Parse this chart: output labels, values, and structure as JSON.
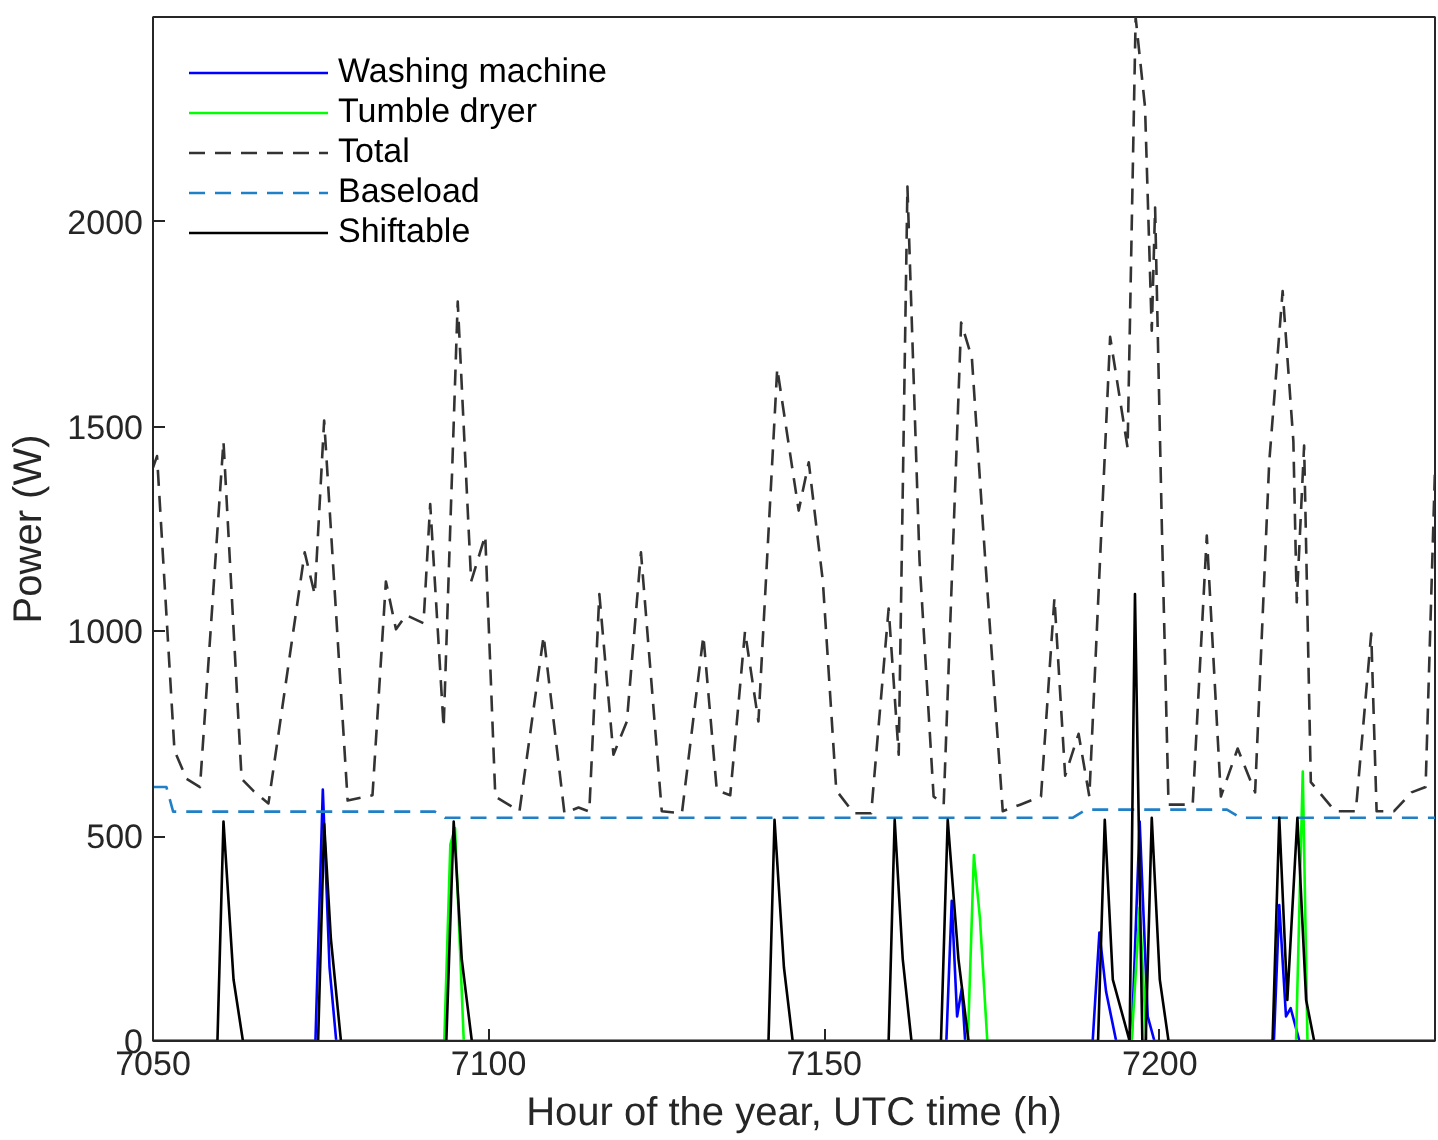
{
  "chart_data": {
    "type": "line",
    "xlabel": "Hour of the year, UTC time (h)",
    "ylabel": "Power (W)",
    "xlim": [
      7050,
      7241
    ],
    "ylim": [
      0,
      2500
    ],
    "xticks": [
      7050,
      7100,
      7150,
      7200
    ],
    "yticks": [
      0,
      500,
      1000,
      1500,
      2000
    ],
    "legend": "top left",
    "marker": "none",
    "series": [
      {
        "name": "Washing machine",
        "color": "#0000ff",
        "line_style": "solid",
        "x": [
          7050,
          7074.2,
          7075.3,
          7076.3,
          7077.3,
          7168.2,
          7169,
          7169.8,
          7170.5,
          7171,
          7190,
          7191,
          7192,
          7193.5,
          7195.8,
          7197,
          7198.2,
          7199.2,
          7217,
          7217.8,
          7218.8,
          7219.5,
          7220.8,
          7241
        ],
        "values": [
          0,
          0,
          614,
          180,
          0,
          0,
          342,
          60,
          128,
          0,
          0,
          265,
          120,
          0,
          0,
          536,
          60,
          0,
          0,
          332,
          60,
          80,
          0,
          0
        ]
      },
      {
        "name": "Tumble dryer",
        "color": "#00ff00",
        "line_style": "solid",
        "x": [
          7050,
          7093.4,
          7094.3,
          7095,
          7096.3,
          7171.4,
          7172.3,
          7173.2,
          7174.3,
          7195.8,
          7197,
          7198,
          7220.3,
          7221.3,
          7222,
          7241
        ],
        "values": [
          0,
          0,
          480,
          520,
          0,
          0,
          454,
          300,
          0,
          0,
          326,
          0,
          0,
          658,
          0,
          0
        ]
      },
      {
        "name": "Total",
        "color": "#333333",
        "line_style": "dashed",
        "x": [
          7050,
          7050.6,
          7053.2,
          7055,
          7057,
          7060.5,
          7063.2,
          7065,
          7067.2,
          7072.6,
          7074.1,
          7075.5,
          7079,
          7082.7,
          7084.7,
          7086.2,
          7087.7,
          7090.3,
          7091.3,
          7093.3,
          7095.4,
          7097.4,
          7099.5,
          7101,
          7104.6,
          7108.2,
          7111.3,
          7113.4,
          7115,
          7116.5,
          7118.6,
          7120.6,
          7122.7,
          7125.8,
          7128.8,
          7132,
          7134,
          7136,
          7138.2,
          7140.2,
          7143,
          7146.2,
          7147.7,
          7149.8,
          7151.8,
          7154.4,
          7157,
          7159.6,
          7161.1,
          7162.4,
          7164.2,
          7166.3,
          7167.8,
          7170.4,
          7172,
          7174,
          7176.6,
          7179.2,
          7182.3,
          7184.3,
          7185.9,
          7187.9,
          7189.5,
          7192.6,
          7195.2,
          7196.4,
          7197.8,
          7198.8,
          7199.3,
          7200.3,
          7201.3,
          7204.9,
          7207,
          7209.1,
          7211.6,
          7214.2,
          7216.3,
          7218.3,
          7219.9,
          7220.4,
          7221.5,
          7222.5,
          7226.1,
          7229.2,
          7231.5,
          7232.3,
          7234.9,
          7237.5,
          7239.6,
          7241
        ],
        "values": [
          1400,
          1428,
          709,
          640,
          620,
          1464,
          640,
          610,
          580,
          1193,
          1090,
          1515,
          587,
          600,
          1122,
          1005,
          1040,
          1020,
          1311,
          765,
          1805,
          1122,
          1234,
          597,
          561,
          989,
          556,
          570,
          560,
          1091,
          699,
          780,
          1193,
          561,
          556,
          989,
          612,
          600,
          1000,
          780,
          1642,
          1295,
          1413,
          1122,
          612,
          556,
          556,
          1056,
          699,
          2086,
          1173,
          597,
          577,
          1754,
          1668,
          1173,
          561,
          577,
          597,
          1081,
          648,
          750,
          597,
          1719,
          1448,
          2499,
          2280,
          1734,
          2035,
          1260,
          577,
          577,
          1234,
          597,
          714,
          607,
          1413,
          1831,
          1464,
          1071,
          1454,
          632,
          561,
          561,
          995,
          561,
          561,
          607,
          620,
          1397
        ]
      },
      {
        "name": "Baseload",
        "color": "#1f80c8",
        "line_style": "dashed",
        "x": [
          7050,
          7052,
          7053,
          7092,
          7093.5,
          7187,
          7189,
          7210,
          7212,
          7241
        ],
        "values": [
          620,
          620,
          560,
          560,
          545,
          545,
          565,
          565,
          545,
          545
        ]
      },
      {
        "name": "Shiftable",
        "color": "#000000",
        "line_style": "solid",
        "x": [
          7050,
          7059.6,
          7060.5,
          7062,
          7063.4,
          7074.6,
          7075.5,
          7076.5,
          7078,
          7093.7,
          7094.8,
          7096,
          7097.5,
          7141.7,
          7142.6,
          7144,
          7145.3,
          7159.6,
          7160.5,
          7161.7,
          7163,
          7167.4,
          7168.4,
          7170,
          7171.5,
          7190.8,
          7191.8,
          7193,
          7195.5,
          7196.3,
          7197.4,
          7197.9,
          7198.8,
          7200,
          7201.3,
          7216.8,
          7217.8,
          7219,
          7220.5,
          7221.8,
          7223,
          7241
        ],
        "values": [
          0,
          0,
          536,
          150,
          0,
          0,
          530,
          250,
          0,
          0,
          536,
          200,
          0,
          0,
          540,
          180,
          0,
          0,
          540,
          200,
          0,
          0,
          540,
          200,
          0,
          0,
          540,
          150,
          0,
          1091,
          0,
          0,
          545,
          150,
          0,
          0,
          545,
          100,
          545,
          100,
          0,
          0
        ]
      }
    ]
  }
}
